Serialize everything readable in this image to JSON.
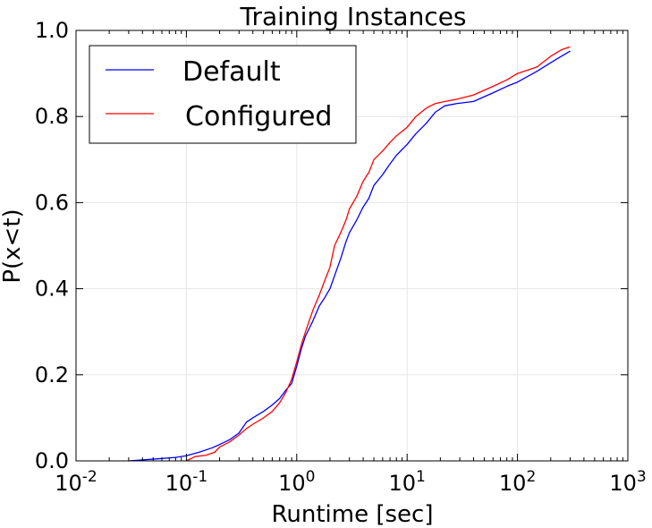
{
  "chart_data": {
    "type": "line",
    "title": "Training Instances",
    "xlabel": "Runtime [sec]",
    "ylabel": "P(x<t)",
    "xscale": "log",
    "xlim": [
      0.01,
      1000
    ],
    "ylim": [
      0.0,
      1.0
    ],
    "grid": true,
    "legend_position": "top-left",
    "x_ticks": [
      {
        "base": "10",
        "exp": "-2"
      },
      {
        "base": "10",
        "exp": "-1"
      },
      {
        "base": "10",
        "exp": "0"
      },
      {
        "base": "10",
        "exp": "1"
      },
      {
        "base": "10",
        "exp": "2"
      },
      {
        "base": "10",
        "exp": "3"
      }
    ],
    "y_ticks": [
      "0.0",
      "0.2",
      "0.4",
      "0.6",
      "0.8",
      "1.0"
    ],
    "series": [
      {
        "name": "Default",
        "color": "#0000ff",
        "points": [
          [
            0.03,
            0.0
          ],
          [
            0.05,
            0.004
          ],
          [
            0.08,
            0.008
          ],
          [
            0.1,
            0.012
          ],
          [
            0.13,
            0.02
          ],
          [
            0.17,
            0.03
          ],
          [
            0.2,
            0.038
          ],
          [
            0.25,
            0.05
          ],
          [
            0.3,
            0.065
          ],
          [
            0.35,
            0.09
          ],
          [
            0.4,
            0.1
          ],
          [
            0.5,
            0.115
          ],
          [
            0.6,
            0.13
          ],
          [
            0.7,
            0.145
          ],
          [
            0.8,
            0.165
          ],
          [
            0.9,
            0.18
          ],
          [
            1.0,
            0.22
          ],
          [
            1.1,
            0.26
          ],
          [
            1.2,
            0.29
          ],
          [
            1.4,
            0.325
          ],
          [
            1.6,
            0.36
          ],
          [
            1.8,
            0.38
          ],
          [
            2.0,
            0.4
          ],
          [
            2.2,
            0.43
          ],
          [
            2.5,
            0.47
          ],
          [
            2.8,
            0.51
          ],
          [
            3.0,
            0.53
          ],
          [
            3.5,
            0.56
          ],
          [
            4.0,
            0.59
          ],
          [
            4.5,
            0.61
          ],
          [
            5.0,
            0.64
          ],
          [
            6.0,
            0.665
          ],
          [
            7.0,
            0.69
          ],
          [
            8.0,
            0.71
          ],
          [
            10.0,
            0.735
          ],
          [
            12.0,
            0.76
          ],
          [
            15.0,
            0.785
          ],
          [
            18.0,
            0.81
          ],
          [
            22.0,
            0.825
          ],
          [
            28.0,
            0.83
          ],
          [
            40.0,
            0.835
          ],
          [
            60.0,
            0.855
          ],
          [
            80.0,
            0.87
          ],
          [
            100.0,
            0.88
          ],
          [
            150.0,
            0.905
          ],
          [
            200.0,
            0.925
          ],
          [
            250.0,
            0.94
          ],
          [
            300.0,
            0.952
          ]
        ]
      },
      {
        "name": "Configured",
        "color": "#ff0000",
        "points": [
          [
            0.1,
            0.0
          ],
          [
            0.12,
            0.01
          ],
          [
            0.15,
            0.013
          ],
          [
            0.18,
            0.02
          ],
          [
            0.2,
            0.032
          ],
          [
            0.25,
            0.045
          ],
          [
            0.3,
            0.06
          ],
          [
            0.35,
            0.075
          ],
          [
            0.4,
            0.085
          ],
          [
            0.5,
            0.1
          ],
          [
            0.6,
            0.115
          ],
          [
            0.7,
            0.135
          ],
          [
            0.8,
            0.16
          ],
          [
            0.9,
            0.19
          ],
          [
            1.0,
            0.23
          ],
          [
            1.1,
            0.27
          ],
          [
            1.2,
            0.3
          ],
          [
            1.4,
            0.35
          ],
          [
            1.6,
            0.385
          ],
          [
            1.8,
            0.42
          ],
          [
            2.0,
            0.45
          ],
          [
            2.2,
            0.5
          ],
          [
            2.5,
            0.53
          ],
          [
            2.8,
            0.56
          ],
          [
            3.0,
            0.585
          ],
          [
            3.5,
            0.615
          ],
          [
            4.0,
            0.65
          ],
          [
            4.5,
            0.67
          ],
          [
            5.0,
            0.7
          ],
          [
            6.0,
            0.72
          ],
          [
            7.0,
            0.74
          ],
          [
            8.0,
            0.755
          ],
          [
            10.0,
            0.775
          ],
          [
            12.0,
            0.8
          ],
          [
            15.0,
            0.82
          ],
          [
            18.0,
            0.83
          ],
          [
            22.0,
            0.835
          ],
          [
            28.0,
            0.84
          ],
          [
            40.0,
            0.85
          ],
          [
            60.0,
            0.87
          ],
          [
            80.0,
            0.885
          ],
          [
            100.0,
            0.9
          ],
          [
            150.0,
            0.915
          ],
          [
            200.0,
            0.94
          ],
          [
            250.0,
            0.955
          ],
          [
            300.0,
            0.962
          ]
        ]
      }
    ]
  }
}
